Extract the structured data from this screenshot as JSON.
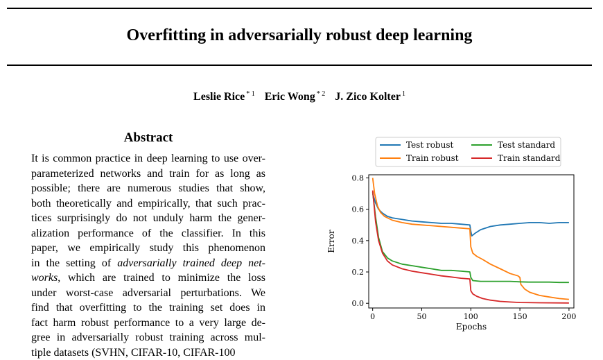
{
  "paper": {
    "title": "Overfitting in adversarially robust deep learning",
    "authors": [
      {
        "name": "Leslie Rice",
        "sup": "* 1"
      },
      {
        "name": "Eric Wong",
        "sup": "* 2"
      },
      {
        "name": "J. Zico Kolter",
        "sup": "1"
      }
    ],
    "abstract_heading": "Abstract",
    "abstract_lines": [
      "It is common practice in deep learning to use over-",
      "parameterized networks and train for as long as",
      "possible; there are numerous studies that show,",
      "both theoretically and empirically, that such prac-",
      "tices surprisingly do not unduly harm the gener-",
      "alization performance of the classifier.  In this",
      "paper, we empirically study this phenomenon",
      "in the setting of |adversarially trained deep net-",
      "|works|, which are trained to minimize the loss",
      "under worst-case adversarial perturbations.  We",
      "find that overfitting to the training set does in",
      "fact harm robust performance to a very large de-",
      "gree in adversarially robust training across mul-",
      "tiple datasets (SVHN, CIFAR-10, CIFAR-100"
    ]
  },
  "chart_data": {
    "type": "line",
    "xlabel": "Epochs",
    "ylabel": "Error",
    "xlim": [
      -4,
      205
    ],
    "ylim": [
      -0.03,
      0.82
    ],
    "xticks": [
      0,
      50,
      100,
      150,
      200
    ],
    "yticks": [
      0.0,
      0.2,
      0.4,
      0.6,
      0.8
    ],
    "grid": false,
    "legend_position": "top, outside the axes, 2 columns",
    "series": [
      {
        "name": "Test robust",
        "color": "#1f77b4",
        "points": [
          [
            0,
            0.7
          ],
          [
            3,
            0.64
          ],
          [
            6,
            0.6
          ],
          [
            10,
            0.575
          ],
          [
            15,
            0.555
          ],
          [
            20,
            0.545
          ],
          [
            30,
            0.535
          ],
          [
            40,
            0.525
          ],
          [
            50,
            0.52
          ],
          [
            60,
            0.515
          ],
          [
            70,
            0.51
          ],
          [
            80,
            0.51
          ],
          [
            90,
            0.505
          ],
          [
            99,
            0.5
          ],
          [
            100,
            0.46
          ],
          [
            101,
            0.43
          ],
          [
            105,
            0.45
          ],
          [
            110,
            0.47
          ],
          [
            120,
            0.49
          ],
          [
            130,
            0.5
          ],
          [
            140,
            0.505
          ],
          [
            150,
            0.51
          ],
          [
            160,
            0.515
          ],
          [
            170,
            0.515
          ],
          [
            180,
            0.51
          ],
          [
            190,
            0.515
          ],
          [
            200,
            0.515
          ]
        ]
      },
      {
        "name": "Train robust",
        "color": "#ff7f0e",
        "points": [
          [
            0,
            0.8
          ],
          [
            2,
            0.7
          ],
          [
            5,
            0.62
          ],
          [
            8,
            0.58
          ],
          [
            12,
            0.555
          ],
          [
            20,
            0.53
          ],
          [
            30,
            0.515
          ],
          [
            40,
            0.505
          ],
          [
            50,
            0.5
          ],
          [
            60,
            0.495
          ],
          [
            70,
            0.49
          ],
          [
            80,
            0.485
          ],
          [
            90,
            0.48
          ],
          [
            99,
            0.475
          ],
          [
            100,
            0.36
          ],
          [
            102,
            0.32
          ],
          [
            106,
            0.3
          ],
          [
            112,
            0.28
          ],
          [
            120,
            0.25
          ],
          [
            130,
            0.22
          ],
          [
            140,
            0.19
          ],
          [
            148,
            0.175
          ],
          [
            150,
            0.165
          ],
          [
            151,
            0.12
          ],
          [
            155,
            0.09
          ],
          [
            160,
            0.07
          ],
          [
            170,
            0.05
          ],
          [
            180,
            0.04
          ],
          [
            190,
            0.03
          ],
          [
            200,
            0.025
          ]
        ]
      },
      {
        "name": "Test standard",
        "color": "#2ca02c",
        "points": [
          [
            0,
            0.71
          ],
          [
            3,
            0.55
          ],
          [
            6,
            0.42
          ],
          [
            10,
            0.33
          ],
          [
            15,
            0.29
          ],
          [
            20,
            0.27
          ],
          [
            30,
            0.25
          ],
          [
            40,
            0.24
          ],
          [
            50,
            0.23
          ],
          [
            60,
            0.22
          ],
          [
            70,
            0.21
          ],
          [
            80,
            0.21
          ],
          [
            90,
            0.205
          ],
          [
            99,
            0.2
          ],
          [
            100,
            0.165
          ],
          [
            102,
            0.145
          ],
          [
            110,
            0.14
          ],
          [
            120,
            0.14
          ],
          [
            130,
            0.14
          ],
          [
            140,
            0.14
          ],
          [
            150,
            0.137
          ],
          [
            160,
            0.135
          ],
          [
            170,
            0.135
          ],
          [
            180,
            0.135
          ],
          [
            190,
            0.133
          ],
          [
            200,
            0.133
          ]
        ]
      },
      {
        "name": "Train standard",
        "color": "#d62728",
        "points": [
          [
            0,
            0.72
          ],
          [
            3,
            0.52
          ],
          [
            6,
            0.4
          ],
          [
            10,
            0.32
          ],
          [
            15,
            0.27
          ],
          [
            20,
            0.245
          ],
          [
            30,
            0.22
          ],
          [
            40,
            0.205
          ],
          [
            50,
            0.195
          ],
          [
            60,
            0.185
          ],
          [
            70,
            0.175
          ],
          [
            80,
            0.168
          ],
          [
            90,
            0.16
          ],
          [
            99,
            0.155
          ],
          [
            100,
            0.08
          ],
          [
            102,
            0.06
          ],
          [
            106,
            0.045
          ],
          [
            112,
            0.03
          ],
          [
            120,
            0.02
          ],
          [
            130,
            0.012
          ],
          [
            140,
            0.008
          ],
          [
            150,
            0.005
          ],
          [
            170,
            0.003
          ],
          [
            200,
            0.002
          ]
        ]
      }
    ]
  }
}
